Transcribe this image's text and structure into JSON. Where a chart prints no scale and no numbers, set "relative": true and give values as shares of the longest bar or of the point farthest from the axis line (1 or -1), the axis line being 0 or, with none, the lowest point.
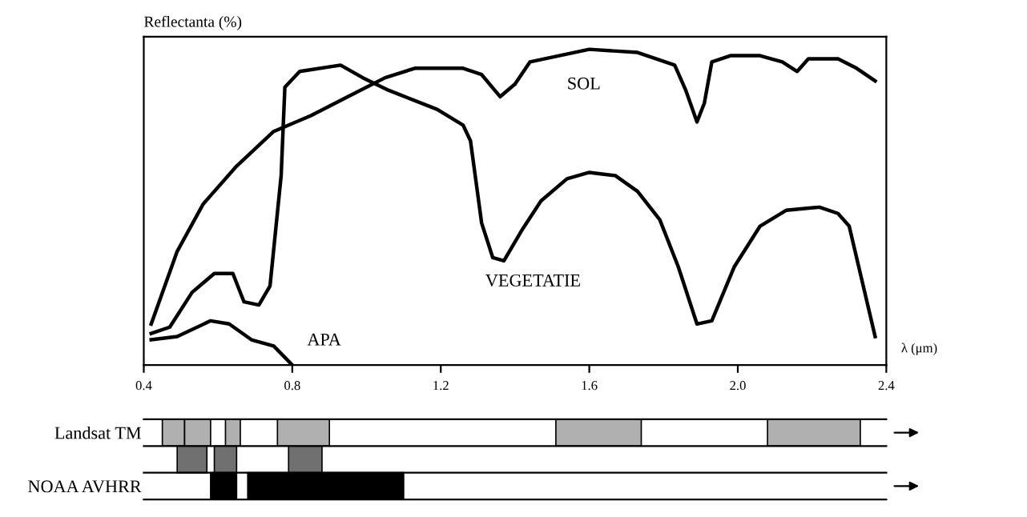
{
  "chart_data": [
    {
      "type": "line",
      "relative": true,
      "ylabel": "Reflectanta (%)",
      "xlabel": "λ (μm)",
      "xlim": [
        0.4,
        2.4
      ],
      "xticks": [
        0.4,
        0.8,
        1.2,
        1.6,
        {
          "value": 2.0,
          "label": "2.0"
        },
        2.4
      ],
      "legend": false,
      "marker": "none",
      "line_style": "solid",
      "series": [
        {
          "name": "SOL",
          "color": "#000000",
          "x": [
            0.42,
            0.49,
            0.56,
            0.65,
            0.75,
            0.85,
            0.95,
            1.05,
            1.13,
            1.26,
            1.31,
            1.36,
            1.4,
            1.44,
            1.6,
            1.73,
            1.83,
            1.86,
            1.89,
            1.91,
            1.93,
            1.98,
            2.06,
            2.12,
            2.16,
            2.19,
            2.27,
            2.32,
            2.37
          ],
          "values": [
            0.13,
            0.36,
            0.51,
            0.63,
            0.74,
            0.79,
            0.85,
            0.91,
            0.94,
            0.94,
            0.92,
            0.85,
            0.89,
            0.96,
            1.0,
            0.99,
            0.95,
            0.87,
            0.77,
            0.83,
            0.96,
            0.98,
            0.98,
            0.96,
            0.93,
            0.97,
            0.97,
            0.94,
            0.9
          ]
        },
        {
          "name": "VEGETATIE",
          "color": "#000000",
          "x": [
            0.42,
            0.47,
            0.53,
            0.59,
            0.64,
            0.67,
            0.71,
            0.74,
            0.77,
            0.78,
            0.82,
            0.93,
            0.99,
            1.06,
            1.19,
            1.26,
            1.28,
            1.31,
            1.34,
            1.37,
            1.42,
            1.47,
            1.54,
            1.6,
            1.67,
            1.73,
            1.79,
            1.84,
            1.89,
            1.93,
            1.99,
            2.06,
            2.13,
            2.22,
            2.27,
            2.3,
            2.37
          ],
          "values": [
            0.1,
            0.12,
            0.23,
            0.29,
            0.29,
            0.2,
            0.19,
            0.25,
            0.6,
            0.88,
            0.93,
            0.95,
            0.91,
            0.87,
            0.81,
            0.76,
            0.71,
            0.45,
            0.34,
            0.33,
            0.43,
            0.52,
            0.59,
            0.61,
            0.6,
            0.55,
            0.46,
            0.31,
            0.13,
            0.14,
            0.31,
            0.44,
            0.49,
            0.5,
            0.48,
            0.44,
            0.09
          ]
        },
        {
          "name": "APA",
          "color": "#000000",
          "x": [
            0.42,
            0.49,
            0.58,
            0.63,
            0.69,
            0.75,
            0.8
          ],
          "values": [
            0.08,
            0.09,
            0.14,
            0.13,
            0.08,
            0.06,
            0
          ]
        }
      ]
    },
    {
      "type": "bar",
      "orientation": "horizontal",
      "categories": [
        "Landsat TM",
        null,
        "NOAA AVHRR"
      ],
      "xlim": [
        0.4,
        2.4
      ],
      "tick_labels": "y",
      "series": [
        {
          "base": [
            0.45,
            0.49,
            0.58
          ],
          "values": [
            0.06,
            0.08,
            0.07
          ],
          "colors": [
            "#b0b0b0",
            "#707070",
            "#000000"
          ]
        },
        {
          "base": [
            0.51,
            0.59,
            0.68
          ],
          "values": [
            0.07,
            0.06,
            0.42
          ],
          "colors": [
            "#b0b0b0",
            "#707070",
            "#000000"
          ]
        },
        {
          "base": [
            0.62,
            0.79,
            null
          ],
          "values": [
            0.04,
            0.09,
            null
          ],
          "colors": [
            "#b0b0b0",
            "#707070",
            "#000000"
          ]
        },
        {
          "base": [
            0.76,
            null,
            null
          ],
          "values": [
            0.14,
            null,
            null
          ],
          "colors": [
            "#b0b0b0",
            "#707070",
            "#000000"
          ]
        },
        {
          "base": [
            1.51,
            null,
            null
          ],
          "values": [
            0.23,
            null,
            null
          ],
          "colors": [
            "#b0b0b0",
            "#707070",
            "#000000"
          ]
        },
        {
          "base": [
            2.08,
            null,
            null
          ],
          "values": [
            0.25,
            null,
            null
          ],
          "colors": [
            "#b0b0b0",
            "#707070",
            "#000000"
          ]
        }
      ]
    }
  ]
}
